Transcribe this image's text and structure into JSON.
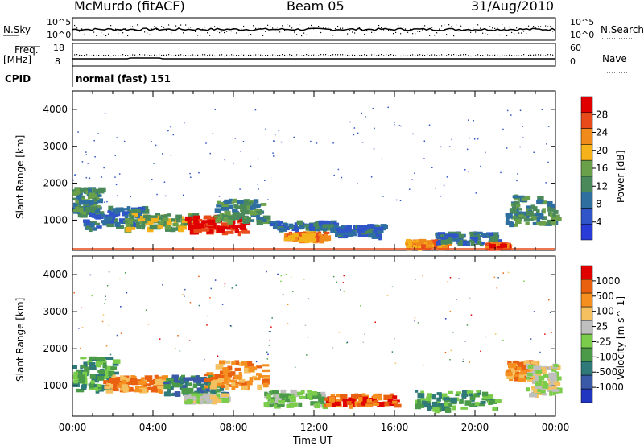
{
  "header": {
    "station": "McMurdo (fitACF)",
    "beam": "Beam 05",
    "date": "31/Aug/2010"
  },
  "strip": {
    "nsky_label": "N.Sky",
    "nsky_ticks": [
      "10^5",
      "10^0"
    ],
    "nsearch_label": "N.Search",
    "nsearch_ticks": [
      "10^5",
      "10^0"
    ],
    "freq_label": "Freq.",
    "freq_unit": "[MHz]",
    "freq_ticks": [
      "18",
      "8"
    ],
    "nave_label": "Nave",
    "nave_ticks": [
      "60",
      "0"
    ],
    "cpid_label": "CPID",
    "cpid_value": "normal (fast) 151"
  },
  "colors": {
    "power_scale": [
      "#2a3cd8",
      "#2f55c8",
      "#2f6fa0",
      "#4a8a5a",
      "#6aa04a",
      "#f5b21a",
      "#f08a1a",
      "#e84a1a",
      "#e00000"
    ],
    "velocity_scale": [
      "#2036c0",
      "#3a5aa8",
      "#2f7a78",
      "#4a9a4a",
      "#7acc4a",
      "#bfbfbf",
      "#f5c060",
      "#f59020",
      "#e86010",
      "#e00000"
    ]
  },
  "chart_data": [
    {
      "type": "heatmap",
      "name": "power_panel",
      "xlabel": "",
      "ylabel": "Slant Range [km]",
      "y_ticks": [
        "4000",
        "3000",
        "2000",
        "1000"
      ],
      "ylim": [
        180,
        4500
      ],
      "xlim_hours": [
        0,
        24
      ],
      "colorbar_label": "Power [dB]",
      "colorbar_ticks": [
        "28",
        "24",
        "20",
        "16",
        "12",
        "8",
        "4"
      ],
      "blobs": [
        {
          "t": [
            0,
            1.3
          ],
          "r": [
            1200,
            1900
          ],
          "level": 3
        },
        {
          "t": [
            0.5,
            3.5
          ],
          "r": [
            800,
            1400
          ],
          "level": 2
        },
        {
          "t": [
            2.5,
            6
          ],
          "r": [
            800,
            1200
          ],
          "level": 4
        },
        {
          "t": [
            5.5,
            8.5
          ],
          "r": [
            700,
            1150
          ],
          "level": 8
        },
        {
          "t": [
            7,
            9.5
          ],
          "r": [
            1000,
            1600
          ],
          "level": 3
        },
        {
          "t": [
            9.7,
            13
          ],
          "r": [
            800,
            1000
          ],
          "level": 2
        },
        {
          "t": [
            10.5,
            12.5
          ],
          "r": [
            500,
            700
          ],
          "level": 6
        },
        {
          "t": [
            13,
            15.5
          ],
          "r": [
            600,
            900
          ],
          "level": 2
        },
        {
          "t": [
            16.5,
            18.5
          ],
          "r": [
            300,
            500
          ],
          "level": 6
        },
        {
          "t": [
            18,
            21
          ],
          "r": [
            400,
            700
          ],
          "level": 2
        },
        {
          "t": [
            20.5,
            21.5
          ],
          "r": [
            300,
            400
          ],
          "level": 7
        },
        {
          "t": [
            21.5,
            24
          ],
          "r": [
            900,
            1700
          ],
          "level": 3
        }
      ]
    },
    {
      "type": "heatmap",
      "name": "velocity_panel",
      "xlabel": "Time UT",
      "ylabel": "Slant Range [km]",
      "x_ticks": [
        "00:00",
        "04:00",
        "08:00",
        "12:00",
        "16:00",
        "20:00",
        "00:00"
      ],
      "y_ticks": [
        "4000",
        "3000",
        "2000",
        "1000"
      ],
      "ylim": [
        180,
        4500
      ],
      "xlim_hours": [
        0,
        24
      ],
      "colorbar_label": "Velocity [m s^-1]",
      "colorbar_ticks": [
        "1000",
        "500",
        "100",
        "25",
        "-25",
        "-100",
        "-500",
        "-1000"
      ],
      "blobs": [
        {
          "t": [
            0,
            2
          ],
          "r": [
            900,
            1800
          ],
          "level": 3
        },
        {
          "t": [
            1.5,
            4.5
          ],
          "r": [
            900,
            1300
          ],
          "level": 7
        },
        {
          "t": [
            4.5,
            7.5
          ],
          "r": [
            800,
            1300
          ],
          "level": 2
        },
        {
          "t": [
            6.5,
            9.5
          ],
          "r": [
            1000,
            1700
          ],
          "level": 7
        },
        {
          "t": [
            5.5,
            7.5
          ],
          "r": [
            600,
            800
          ],
          "level": 5
        },
        {
          "t": [
            9.5,
            12.5
          ],
          "r": [
            500,
            900
          ],
          "level": 4
        },
        {
          "t": [
            12.5,
            16
          ],
          "r": [
            500,
            800
          ],
          "level": 8
        },
        {
          "t": [
            17,
            21
          ],
          "r": [
            400,
            900
          ],
          "level": 3
        },
        {
          "t": [
            21.5,
            23
          ],
          "r": [
            1200,
            1700
          ],
          "level": 7
        },
        {
          "t": [
            22.5,
            24
          ],
          "r": [
            800,
            1600
          ],
          "level": 5
        }
      ]
    }
  ]
}
